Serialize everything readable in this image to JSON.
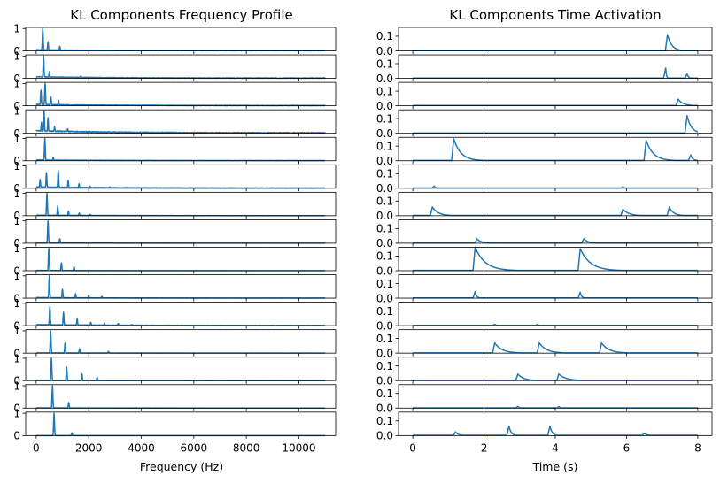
{
  "chart_data": [
    {
      "type": "line",
      "title": "KL Components Frequency Profile",
      "xlabel": "Frequency (Hz)",
      "ylabel": "",
      "xlim": [
        -400,
        11400
      ],
      "ylim": [
        0,
        1.05
      ],
      "x_ticks": [
        0,
        2000,
        4000,
        6000,
        8000,
        10000
      ],
      "x_tick_labels": [
        "0",
        "2000",
        "4000",
        "6000",
        "8000",
        "10000"
      ],
      "y_ticks": [
        0,
        1
      ],
      "y_tick_labels": [
        "0",
        "1"
      ],
      "line_color": "#1f77b4",
      "grid": false,
      "series": [
        {
          "peaks": [
            [
              250,
              1.0
            ],
            [
              450,
              0.4
            ],
            [
              900,
              0.2
            ]
          ],
          "baseline": 0.04
        },
        {
          "peaks": [
            [
              280,
              1.0
            ],
            [
              500,
              0.3
            ],
            [
              1700,
              0.1
            ]
          ],
          "baseline": 0.06
        },
        {
          "peaks": [
            [
              180,
              0.7
            ],
            [
              340,
              1.0
            ],
            [
              560,
              0.4
            ],
            [
              850,
              0.25
            ]
          ],
          "baseline": 0.05
        },
        {
          "peaks": [
            [
              200,
              0.5
            ],
            [
              300,
              1.0
            ],
            [
              450,
              0.7
            ],
            [
              700,
              0.3
            ],
            [
              1200,
              0.2
            ]
          ],
          "baseline": 0.1
        },
        {
          "peaks": [
            [
              330,
              1.0
            ],
            [
              650,
              0.15
            ]
          ],
          "baseline": 0.03
        },
        {
          "peaks": [
            [
              150,
              0.4
            ],
            [
              390,
              0.7
            ],
            [
              840,
              0.8
            ],
            [
              1220,
              0.35
            ],
            [
              1630,
              0.2
            ],
            [
              2040,
              0.1
            ],
            [
              2800,
              0.06
            ]
          ],
          "baseline": 0.05
        },
        {
          "peaks": [
            [
              410,
              1.0
            ],
            [
              820,
              0.45
            ],
            [
              1230,
              0.2
            ],
            [
              1640,
              0.12
            ],
            [
              2050,
              0.06
            ]
          ],
          "baseline": 0.02
        },
        {
          "peaks": [
            [
              450,
              1.0
            ],
            [
              900,
              0.2
            ]
          ],
          "baseline": 0.01
        },
        {
          "peaks": [
            [
              480,
              1.0
            ],
            [
              960,
              0.35
            ],
            [
              1440,
              0.18
            ]
          ],
          "baseline": 0.01
        },
        {
          "peaks": [
            [
              500,
              1.0
            ],
            [
              1000,
              0.4
            ],
            [
              1500,
              0.2
            ],
            [
              2000,
              0.12
            ],
            [
              2500,
              0.08
            ]
          ],
          "baseline": 0.02
        },
        {
          "peaks": [
            [
              520,
              0.85
            ],
            [
              1040,
              0.6
            ],
            [
              1560,
              0.3
            ],
            [
              2080,
              0.15
            ],
            [
              2600,
              0.12
            ],
            [
              3120,
              0.1
            ],
            [
              3640,
              0.05
            ]
          ],
          "baseline": 0.04
        },
        {
          "peaks": [
            [
              550,
              1.0
            ],
            [
              1100,
              0.45
            ],
            [
              1650,
              0.2
            ],
            [
              2750,
              0.08
            ]
          ],
          "baseline": 0.01
        },
        {
          "peaks": [
            [
              580,
              1.0
            ],
            [
              1160,
              0.6
            ],
            [
              1740,
              0.3
            ],
            [
              2320,
              0.15
            ]
          ],
          "baseline": 0.01
        },
        {
          "peaks": [
            [
              620,
              1.0
            ],
            [
              1240,
              0.25
            ]
          ],
          "baseline": 0.01
        },
        {
          "peaks": [
            [
              680,
              1.0
            ],
            [
              1360,
              0.12
            ]
          ],
          "baseline": 0.0
        }
      ]
    },
    {
      "type": "line",
      "title": "KL Components Time Activation",
      "xlabel": "Time (s)",
      "ylabel": "",
      "xlim": [
        -0.4,
        8.4
      ],
      "ylim": [
        0,
        0.16
      ],
      "x_ticks": [
        0,
        2,
        4,
        6,
        8
      ],
      "x_tick_labels": [
        "0",
        "2",
        "4",
        "6",
        "8"
      ],
      "y_ticks": [
        0,
        0.1
      ],
      "y_tick_labels": [
        "0.0",
        "0.1"
      ],
      "line_color": "#1f77b4",
      "grid": false,
      "series": [
        {
          "events": [
            [
              7.15,
              0.11,
              0.3
            ]
          ]
        },
        {
          "events": [
            [
              7.1,
              0.07,
              0.05
            ],
            [
              7.7,
              0.03,
              0.1
            ]
          ]
        },
        {
          "events": [
            [
              7.45,
              0.045,
              0.35
            ]
          ]
        },
        {
          "events": [
            [
              7.7,
              0.12,
              0.3
            ]
          ]
        },
        {
          "events": [
            [
              1.15,
              0.15,
              0.5
            ],
            [
              6.55,
              0.14,
              0.5
            ],
            [
              7.8,
              0.04,
              0.15
            ]
          ]
        },
        {
          "events": [
            [
              0.6,
              0.015,
              0.1
            ],
            [
              5.9,
              0.01,
              0.1
            ]
          ]
        },
        {
          "events": [
            [
              0.55,
              0.06,
              0.4
            ],
            [
              5.9,
              0.045,
              0.4
            ],
            [
              7.2,
              0.06,
              0.3
            ]
          ]
        },
        {
          "events": [
            [
              1.8,
              0.03,
              0.3
            ],
            [
              4.8,
              0.03,
              0.3
            ]
          ]
        },
        {
          "events": [
            [
              1.75,
              0.16,
              0.7
            ],
            [
              4.7,
              0.15,
              0.7
            ]
          ]
        },
        {
          "events": [
            [
              1.75,
              0.045,
              0.1
            ],
            [
              4.7,
              0.04,
              0.1
            ]
          ]
        },
        {
          "events": [
            [
              2.3,
              0.01,
              0.1
            ],
            [
              3.5,
              0.01,
              0.1
            ]
          ]
        },
        {
          "events": [
            [
              2.3,
              0.07,
              0.5
            ],
            [
              3.55,
              0.07,
              0.5
            ],
            [
              5.3,
              0.07,
              0.5
            ]
          ]
        },
        {
          "events": [
            [
              2.95,
              0.045,
              0.4
            ],
            [
              4.1,
              0.045,
              0.5
            ]
          ]
        },
        {
          "events": [
            [
              2.95,
              0.012,
              0.1
            ],
            [
              4.1,
              0.01,
              0.1
            ]
          ]
        },
        {
          "events": [
            [
              1.2,
              0.025,
              0.2
            ],
            [
              2.7,
              0.065,
              0.15
            ],
            [
              3.85,
              0.065,
              0.15
            ],
            [
              6.5,
              0.015,
              0.2
            ]
          ]
        }
      ]
    }
  ]
}
